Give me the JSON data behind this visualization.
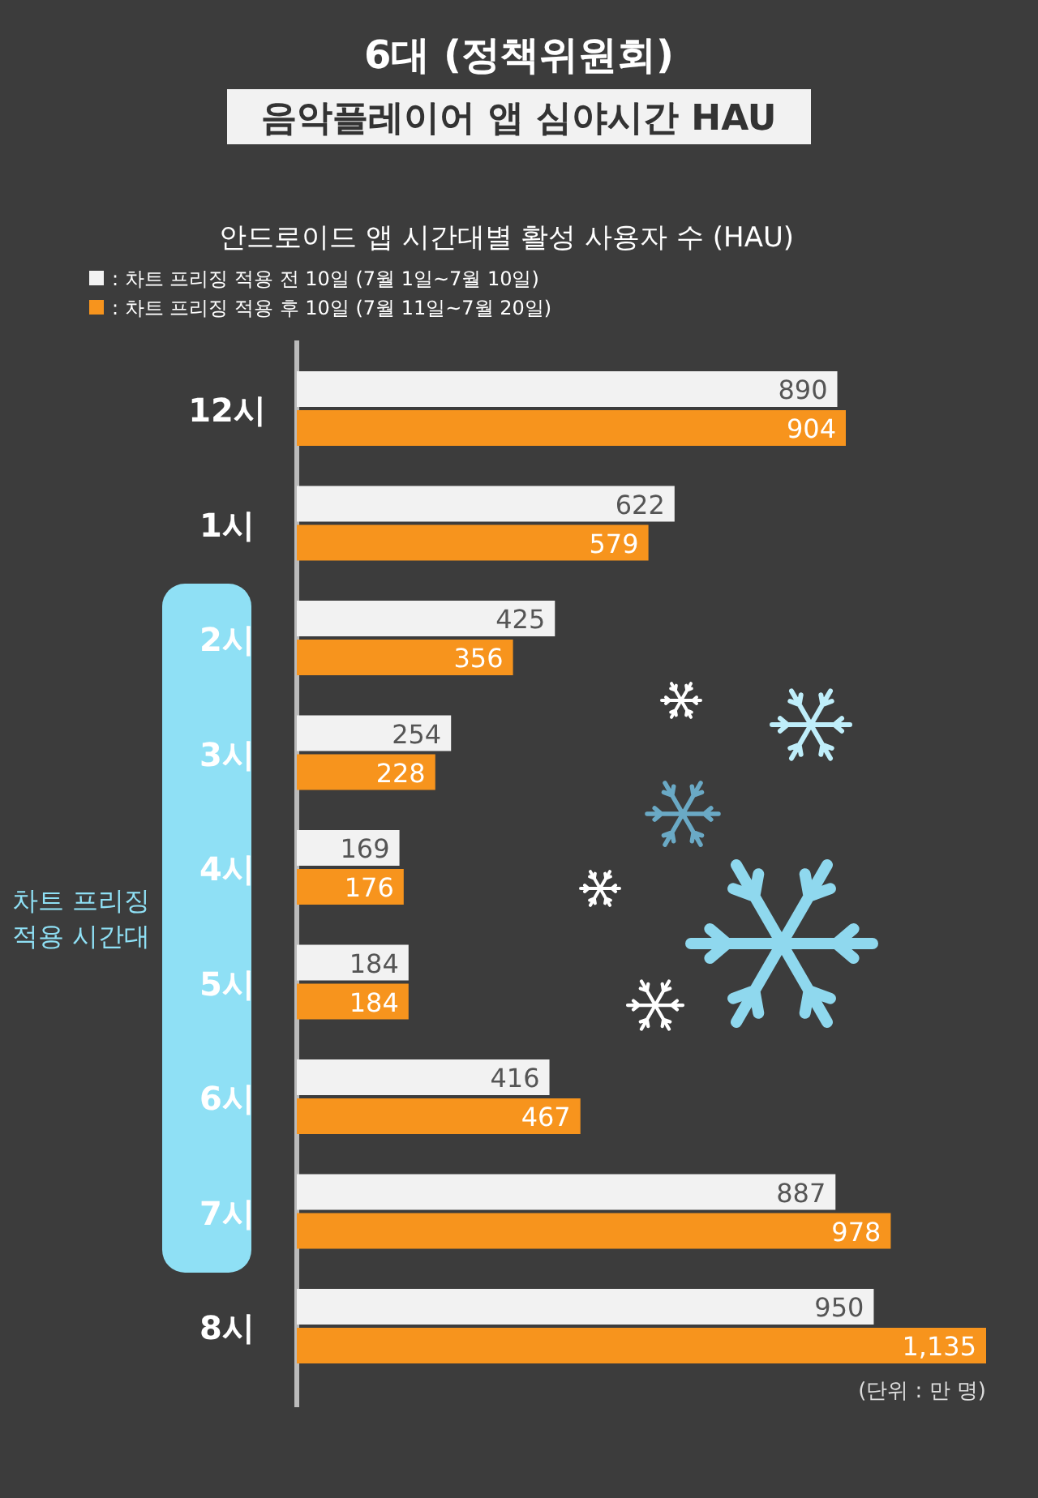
{
  "chart_data": {
    "type": "bar",
    "orientation": "horizontal",
    "title": "6대 (정책위원회)\n음악플레이어 앱 심야시간 HAU",
    "subtitle": "안드로이드 앱 시간대별 활성 사용자 수 (HAU)",
    "categories": [
      "12시",
      "1시",
      "2시",
      "3시",
      "4시",
      "5시",
      "6시",
      "7시",
      "8시"
    ],
    "series": [
      {
        "name": ": 차트 프리징 적용 전 10일 (7월 1일~7월 10일)",
        "color": "#f2f2f2",
        "values": [
          890,
          622,
          425,
          254,
          169,
          184,
          416,
          887,
          950
        ],
        "value_labels": [
          "890",
          "622",
          "425",
          "254",
          "169",
          "184",
          "416",
          "887",
          "950"
        ]
      },
      {
        "name": ": 차트 프리징 적용 후 10일 (7월 11일~7월 20일)",
        "color": "#f7941d",
        "values": [
          904,
          579,
          356,
          228,
          176,
          184,
          467,
          978,
          1135
        ],
        "value_labels": [
          "904",
          "579",
          "356",
          "228",
          "176",
          "184",
          "467",
          "978",
          "1,135"
        ]
      }
    ],
    "data_labels": true,
    "legend": "top left",
    "annotations": [
      "차트 프리징\n적용 시간대",
      "(단위 : 만 명)"
    ]
  }
}
